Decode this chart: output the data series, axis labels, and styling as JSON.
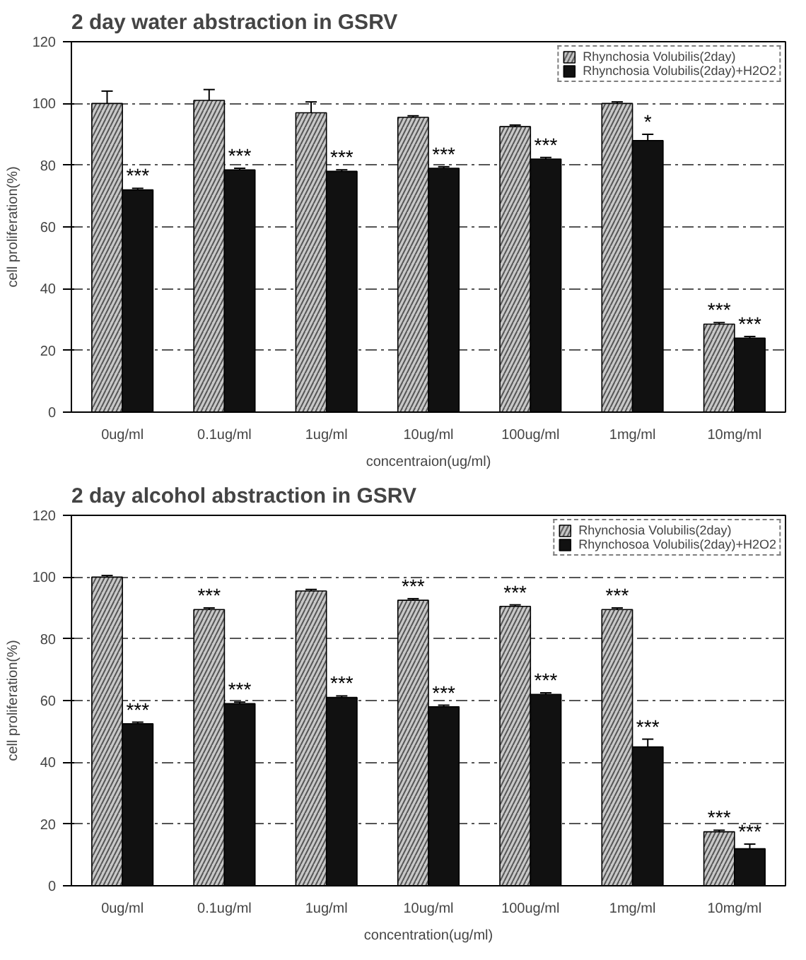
{
  "chart_data": [
    {
      "type": "bar",
      "title": "2 day water abstraction in GSRV",
      "xlabel": "concentraion(ug/ml)",
      "ylabel": "cell proliferation(%)",
      "categories": [
        "0ug/ml",
        "0.1ug/ml",
        "1ug/ml",
        "10ug/ml",
        "100ug/ml",
        "1mg/ml",
        "10mg/ml"
      ],
      "series": [
        {
          "name": "Rhynchosia Volubilis(2day)",
          "color": "#c8c8c8",
          "values": [
            100,
            101,
            97,
            95.5,
            92.5,
            100,
            28.5
          ],
          "errors": [
            4,
            3.5,
            3.5,
            0.5,
            0.5,
            0.5,
            0.5
          ]
        },
        {
          "name": "Rhynchosia Volubilis(2day)+H2O2",
          "color": "#111111",
          "values": [
            72,
            78.5,
            78,
            79,
            82,
            88,
            24
          ],
          "errors": [
            0.5,
            0.5,
            0.5,
            0.5,
            0.5,
            2,
            0.5
          ]
        }
      ],
      "ylim": [
        0,
        120
      ],
      "yticks": [
        0,
        20,
        40,
        60,
        80,
        100,
        120
      ],
      "grid": "y",
      "legend": "top right",
      "annotations": [
        {
          "text": "***",
          "x": "0ug/ml",
          "y": 72
        },
        {
          "text": "***",
          "x": "0.1ug/ml",
          "y": 78.5
        },
        {
          "text": "***",
          "x": "1ug/ml",
          "y": 78
        },
        {
          "text": "***",
          "x": "10ug/ml",
          "y": 79
        },
        {
          "text": "***",
          "x": "100ug/ml",
          "y": 82
        },
        {
          "text": "*",
          "x": "1mg/ml",
          "y": 88
        },
        {
          "text": "***",
          "x": "10mg/ml",
          "y": 28.5
        },
        {
          "text": "***",
          "x": "10mg/ml",
          "y": 24
        }
      ]
    },
    {
      "type": "bar",
      "title": "2 day alcohol abstraction in GSRV",
      "xlabel": "concentration(ug/ml)",
      "ylabel": "cell proliferation(%)",
      "categories": [
        "0ug/ml",
        "0.1ug/ml",
        "1ug/ml",
        "10ug/ml",
        "100ug/ml",
        "1mg/ml",
        "10mg/ml"
      ],
      "series": [
        {
          "name": "Rhynchosia Volubilis(2day)",
          "color": "#c8c8c8",
          "values": [
            100,
            89.5,
            95.5,
            92.5,
            90.5,
            89.5,
            17.5
          ],
          "errors": [
            0.5,
            0.5,
            0.5,
            0.5,
            0.5,
            0.5,
            0.5
          ]
        },
        {
          "name": "Rhynchosoa Volubilis(2day)+H2O2",
          "color": "#111111",
          "values": [
            52.5,
            59,
            61,
            58,
            62,
            45,
            12
          ],
          "errors": [
            0.5,
            0.5,
            0.5,
            0.5,
            0.5,
            2.5,
            1.5
          ]
        }
      ],
      "ylim": [
        0,
        120
      ],
      "yticks": [
        0,
        20,
        40,
        60,
        80,
        100,
        120
      ],
      "grid": "y",
      "legend": "top right",
      "annotations": [
        {
          "text": "***",
          "x": "0ug/ml",
          "y": 52.5
        },
        {
          "text": "***",
          "x": "0.1ug/ml",
          "y": 89.5
        },
        {
          "text": "***",
          "x": "0.1ug/ml",
          "y": 59
        },
        {
          "text": "***",
          "x": "1ug/ml",
          "y": 61
        },
        {
          "text": "***",
          "x": "10ug/ml",
          "y": 92.5
        },
        {
          "text": "***",
          "x": "10ug/ml",
          "y": 58
        },
        {
          "text": "***",
          "x": "100ug/ml",
          "y": 90.5
        },
        {
          "text": "***",
          "x": "100ug/ml",
          "y": 62
        },
        {
          "text": "***",
          "x": "1mg/ml",
          "y": 89.5
        },
        {
          "text": "***",
          "x": "1mg/ml",
          "y": 45
        },
        {
          "text": "***",
          "x": "10mg/ml",
          "y": 17.5
        },
        {
          "text": "***",
          "x": "10mg/ml",
          "y": 12
        }
      ]
    }
  ]
}
